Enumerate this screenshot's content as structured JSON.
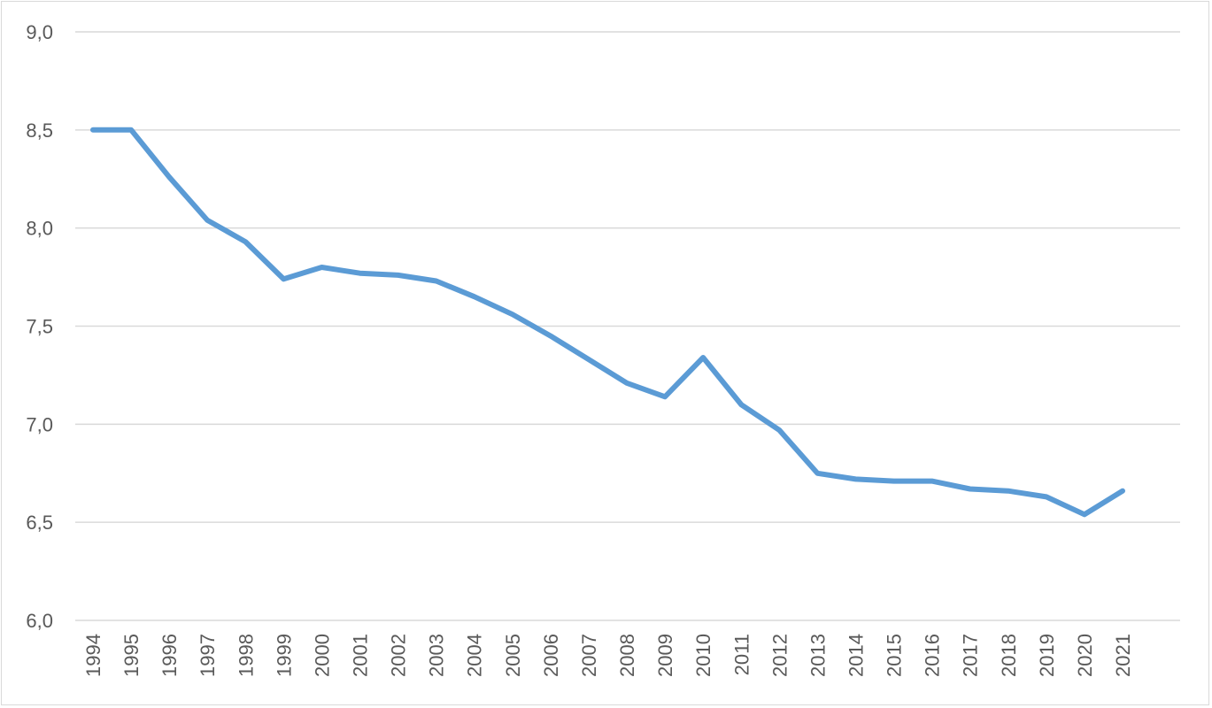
{
  "chart_data": {
    "type": "line",
    "title": "",
    "xlabel": "",
    "ylabel": "",
    "ylim": [
      6.0,
      9.0
    ],
    "yticks": [
      "6,0",
      "6,5",
      "7,0",
      "7,5",
      "8,0",
      "8,5",
      "9,0"
    ],
    "ytick_values": [
      6.0,
      6.5,
      7.0,
      7.5,
      8.0,
      8.5,
      9.0
    ],
    "grid": "horizontal",
    "legend": "none",
    "categories": [
      "1994",
      "1995",
      "1996",
      "1997",
      "1998",
      "1999",
      "2000",
      "2001",
      "2002",
      "2003",
      "2004",
      "2005",
      "2006",
      "2007",
      "2008",
      "2009",
      "2010",
      "2011",
      "2012",
      "2013",
      "2014",
      "2015",
      "2016",
      "2017",
      "2018",
      "2019",
      "2020",
      "2021"
    ],
    "series": [
      {
        "color": "#5b9bd5",
        "values": [
          8.5,
          8.5,
          8.26,
          8.04,
          7.93,
          7.74,
          7.8,
          7.77,
          7.76,
          7.73,
          7.65,
          7.56,
          7.45,
          7.33,
          7.21,
          7.14,
          7.34,
          7.1,
          6.97,
          6.75,
          6.72,
          6.71,
          6.71,
          6.67,
          6.66,
          6.63,
          6.54,
          6.66
        ]
      }
    ]
  }
}
